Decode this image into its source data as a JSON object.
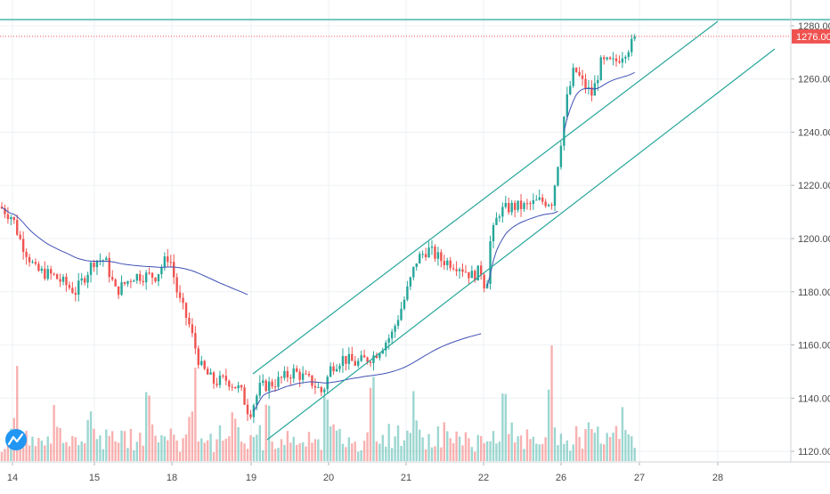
{
  "chart_data": {
    "type": "candlestick",
    "title": "",
    "price_axis": {
      "range": [
        1116,
        1285
      ],
      "ticks": [
        "1280.00",
        "1260.00",
        "1240.00",
        "1220.00",
        "1200.00",
        "1180.00",
        "1160.00",
        "1140.00",
        "1120.00"
      ]
    },
    "time_axis": {
      "labels": [
        "14",
        "15",
        "18",
        "19",
        "20",
        "21",
        "22",
        "26",
        "27",
        "28"
      ]
    },
    "last_price": {
      "value": 1276,
      "label": "1276.00",
      "color": "#ef5350"
    },
    "grid": true,
    "colors": {
      "up": "#26a69a",
      "down": "#ef5350",
      "vwap": "#3f51b5",
      "trendlines": "#26a69a",
      "grid": "#eef1f4",
      "axis_text": "#4a4a4a"
    },
    "volume_heights_relative": [
      0.15,
      0.2,
      0.3,
      0.4,
      0.6,
      1.0,
      0.3,
      0.2,
      0.25,
      0.2,
      0.3,
      0.15,
      0.2,
      0.3,
      0.25,
      0.2,
      0.3,
      0.5,
      0.6,
      0.4,
      0.3,
      0.2,
      0.15,
      0.3,
      0.2,
      0.25,
      0.3,
      0.2,
      0.5,
      0.45,
      0.3,
      0.2,
      0.25,
      0.2,
      0.3,
      0.35,
      0.25,
      0.2,
      0.15,
      0.3,
      0.25,
      0.2,
      0.3,
      0.2,
      0.25,
      0.3,
      0.2,
      0.6,
      0.7,
      0.5,
      0.4,
      0.3,
      0.35,
      0.25,
      0.2,
      0.3,
      0.25,
      0.2
    ],
    "logo": {
      "name": "tradingview-logo-icon"
    }
  }
}
